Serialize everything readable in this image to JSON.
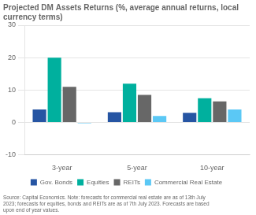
{
  "chart_data": {
    "type": "bar",
    "title": "Projected DM Assets Returns (%, average annual returns, local\ncurrency terms)",
    "categories": [
      "3-year",
      "5-year",
      "10-year"
    ],
    "series": [
      {
        "name": "Gov. Bonds",
        "color": "#2655a3",
        "values": [
          4.0,
          3.2,
          3.0
        ]
      },
      {
        "name": "Equities",
        "color": "#00b09e",
        "values": [
          20.0,
          12.0,
          7.5
        ]
      },
      {
        "name": "REITs",
        "color": "#676767",
        "values": [
          11.0,
          8.5,
          6.5
        ]
      },
      {
        "name": "Commercial Real Estate",
        "color": "#5bc8f5",
        "values": [
          -0.2,
          2.0,
          4.0
        ]
      }
    ],
    "ylim": [
      -10,
      30
    ],
    "yticks": [
      -10,
      0,
      10,
      20,
      30
    ],
    "grid": true,
    "legend": "bottom",
    "annotations": [
      "Source: Capital Economics. Note: forecasts for commercial real estate are as of 13th July\n2023; forecasts for equities, bonds and REITs are as of 7th July 2023. Forecasts are based\nupon end of year values."
    ]
  }
}
